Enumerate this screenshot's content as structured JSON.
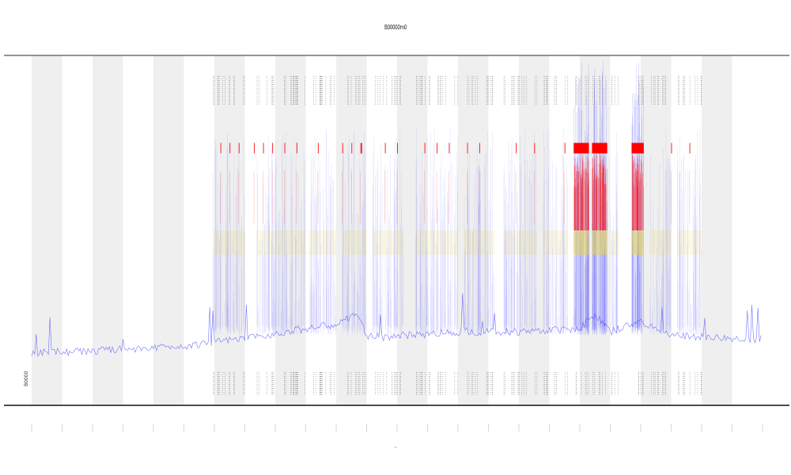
{
  "chart_data": {
    "type": "line",
    "title": "B00000m0",
    "xlabel": "t",
    "ylabel": "",
    "legend_label": "B0000",
    "day_count": 24,
    "ylim": [
      0,
      100
    ],
    "line_color": "#3b3bff",
    "shade_color": "#d9d9d9",
    "event_colors": {
      "red": "#ff0000",
      "yellow": "#e8d44a",
      "blue": "#6b6bff",
      "tick": "#555555"
    },
    "baseline": [
      {
        "x": 0,
        "y": 15
      },
      {
        "x": 2,
        "y": 15.5
      },
      {
        "x": 4,
        "y": 16.5
      },
      {
        "x": 5,
        "y": 17
      },
      {
        "x": 6,
        "y": 18
      },
      {
        "x": 7,
        "y": 19
      },
      {
        "x": 8,
        "y": 20.5
      },
      {
        "x": 9,
        "y": 22
      },
      {
        "x": 10,
        "y": 23
      },
      {
        "x": 10.7,
        "y": 26
      },
      {
        "x": 11,
        "y": 20
      },
      {
        "x": 11.5,
        "y": 19.5
      },
      {
        "x": 14,
        "y": 21
      },
      {
        "x": 16,
        "y": 21
      },
      {
        "x": 18,
        "y": 22
      },
      {
        "x": 18.5,
        "y": 26
      },
      {
        "x": 19,
        "y": 21
      },
      {
        "x": 20,
        "y": 24
      },
      {
        "x": 20.5,
        "y": 22
      },
      {
        "x": 21,
        "y": 20
      },
      {
        "x": 23,
        "y": 19
      },
      {
        "x": 24,
        "y": 19
      }
    ],
    "active_periods": [
      {
        "start": 5.95,
        "end": 7.0,
        "intensity": 1
      },
      {
        "start": 7.4,
        "end": 9.0,
        "intensity": 1
      },
      {
        "start": 9.1,
        "end": 10.0,
        "intensity": 1
      },
      {
        "start": 10.2,
        "end": 11.0,
        "intensity": 2
      },
      {
        "start": 11.2,
        "end": 12.2,
        "intensity": 1
      },
      {
        "start": 12.6,
        "end": 14.0,
        "intensity": 1
      },
      {
        "start": 14.2,
        "end": 15.2,
        "intensity": 1
      },
      {
        "start": 15.5,
        "end": 16.6,
        "intensity": 1
      },
      {
        "start": 16.8,
        "end": 17.6,
        "intensity": 1
      },
      {
        "start": 17.8,
        "end": 18.3,
        "intensity": 3
      },
      {
        "start": 18.4,
        "end": 18.9,
        "intensity": 3
      },
      {
        "start": 19.0,
        "end": 19.3,
        "intensity": 1
      },
      {
        "start": 19.7,
        "end": 20.1,
        "intensity": 3
      },
      {
        "start": 20.3,
        "end": 21.0,
        "intensity": 1
      },
      {
        "start": 21.2,
        "end": 22.0,
        "intensity": 1
      }
    ],
    "event_ticks": [
      {
        "x": 6.2,
        "level": "low"
      },
      {
        "x": 6.5,
        "level": "low"
      },
      {
        "x": 6.8,
        "level": "low"
      },
      {
        "x": 7.3,
        "level": "low"
      },
      {
        "x": 7.6,
        "level": "med"
      },
      {
        "x": 7.9,
        "level": "low"
      },
      {
        "x": 8.3,
        "level": "low"
      },
      {
        "x": 8.7,
        "level": "med"
      },
      {
        "x": 9.4,
        "level": "low"
      },
      {
        "x": 10.2,
        "level": "med"
      },
      {
        "x": 10.5,
        "level": "med"
      },
      {
        "x": 10.8,
        "level": "high"
      },
      {
        "x": 11.6,
        "level": "low"
      },
      {
        "x": 12.0,
        "level": "low"
      },
      {
        "x": 12.9,
        "level": "low"
      },
      {
        "x": 13.3,
        "level": "low"
      },
      {
        "x": 13.7,
        "level": "low"
      },
      {
        "x": 14.3,
        "level": "low"
      },
      {
        "x": 14.7,
        "level": "low"
      },
      {
        "x": 15.9,
        "level": "low"
      },
      {
        "x": 16.5,
        "level": "low"
      },
      {
        "x": 17.5,
        "level": "low"
      },
      {
        "x": 18.1,
        "level": "high"
      },
      {
        "x": 18.6,
        "level": "high"
      },
      {
        "x": 19.9,
        "level": "high"
      },
      {
        "x": 21.0,
        "level": "low"
      },
      {
        "x": 21.6,
        "level": "low"
      }
    ],
    "band_levels": {
      "red_top": 75,
      "red_bottom": 72,
      "yellow_top": 50,
      "yellow_bottom": 43,
      "blue_top": 43
    }
  }
}
